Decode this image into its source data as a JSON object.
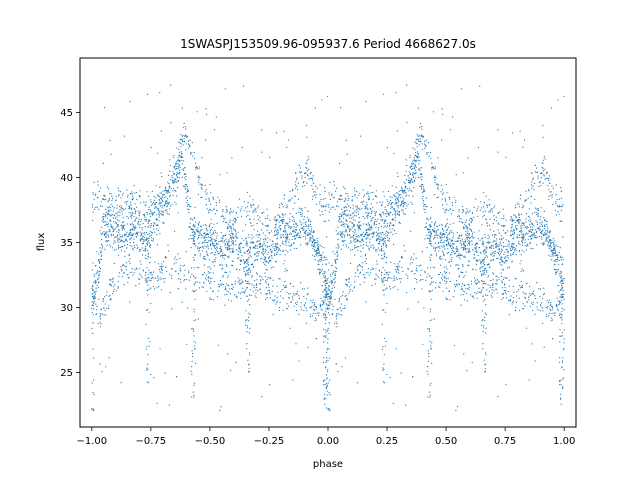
{
  "chart_data": {
    "type": "scatter",
    "title": "1SWASPJ153509.96-095937.6 Period 4668627.0s",
    "xlabel": "phase",
    "ylabel": "flux",
    "xlim": [
      -1.05,
      1.05
    ],
    "ylim": [
      20.8,
      49.2
    ],
    "xticks": [
      -1.0,
      -0.75,
      -0.5,
      -0.25,
      0.0,
      0.25,
      0.5,
      0.75,
      1.0
    ],
    "xtick_labels": [
      "−1.00",
      "−0.75",
      "−0.50",
      "−0.25",
      "0.00",
      "0.25",
      "0.50",
      "0.75",
      "1.00"
    ],
    "yticks": [
      25,
      30,
      35,
      40,
      45
    ],
    "ytick_labels": [
      "25",
      "30",
      "35",
      "40",
      "45"
    ],
    "grid": false,
    "legend": "none",
    "marker_color": "#1f77b4",
    "series": [
      {
        "points_per_cycle": 3000,
        "phase_range": [
          -1.0,
          1.0
        ],
        "repeats_with_period": 1.0,
        "trend": {
          "x": [
            0.0,
            0.03,
            0.05,
            0.08,
            0.12,
            0.18,
            0.22,
            0.25,
            0.28,
            0.32,
            0.36,
            0.38,
            0.42,
            0.46,
            0.5,
            0.55,
            0.6,
            0.65,
            0.7,
            0.75,
            0.78,
            0.82,
            0.86,
            0.9,
            0.94,
            0.97,
            1.0
          ],
          "y": [
            31.5,
            32.5,
            36.0,
            36.5,
            35.5,
            36.0,
            35.5,
            36.0,
            37.5,
            38.0,
            40.0,
            42.0,
            36.0,
            35.5,
            35.0,
            34.5,
            35.0,
            34.0,
            34.5,
            34.0,
            35.0,
            35.5,
            36.0,
            36.5,
            35.0,
            33.5,
            31.5
          ]
        },
        "upper_branch": {
          "x": [
            0.28,
            0.32,
            0.36,
            0.39,
            0.42,
            0.45,
            0.48,
            0.52,
            0.58,
            0.64,
            0.7,
            0.76,
            0.8,
            0.84,
            0.88,
            0.92,
            0.96
          ],
          "y": [
            38.0,
            39.5,
            41.0,
            43.5,
            42.0,
            40.0,
            38.5,
            37.5,
            37.0,
            37.5,
            37.0,
            36.0,
            37.0,
            38.5,
            40.0,
            40.5,
            38.0
          ]
        },
        "lower_branch": {
          "x": [
            0.0,
            0.04,
            0.08,
            0.14,
            0.2,
            0.26,
            0.32,
            0.4,
            0.5,
            0.6,
            0.7,
            0.78,
            0.84,
            0.9,
            0.96,
            1.0
          ],
          "y": [
            30.5,
            29.5,
            31.5,
            33.0,
            32.5,
            32.0,
            33.5,
            32.5,
            32.0,
            31.5,
            32.0,
            31.0,
            31.0,
            30.5,
            30.0,
            30.5
          ]
        },
        "dips": [
          {
            "x": 0.0,
            "min": 22.0
          },
          {
            "x": 0.43,
            "min": 23.0
          },
          {
            "x": 0.24,
            "min": 24.0
          },
          {
            "x": 0.66,
            "min": 25.0
          },
          {
            "x": 0.99,
            "min": 22.5
          }
        ],
        "y_range": [
          22.0,
          48.0
        ]
      }
    ]
  }
}
